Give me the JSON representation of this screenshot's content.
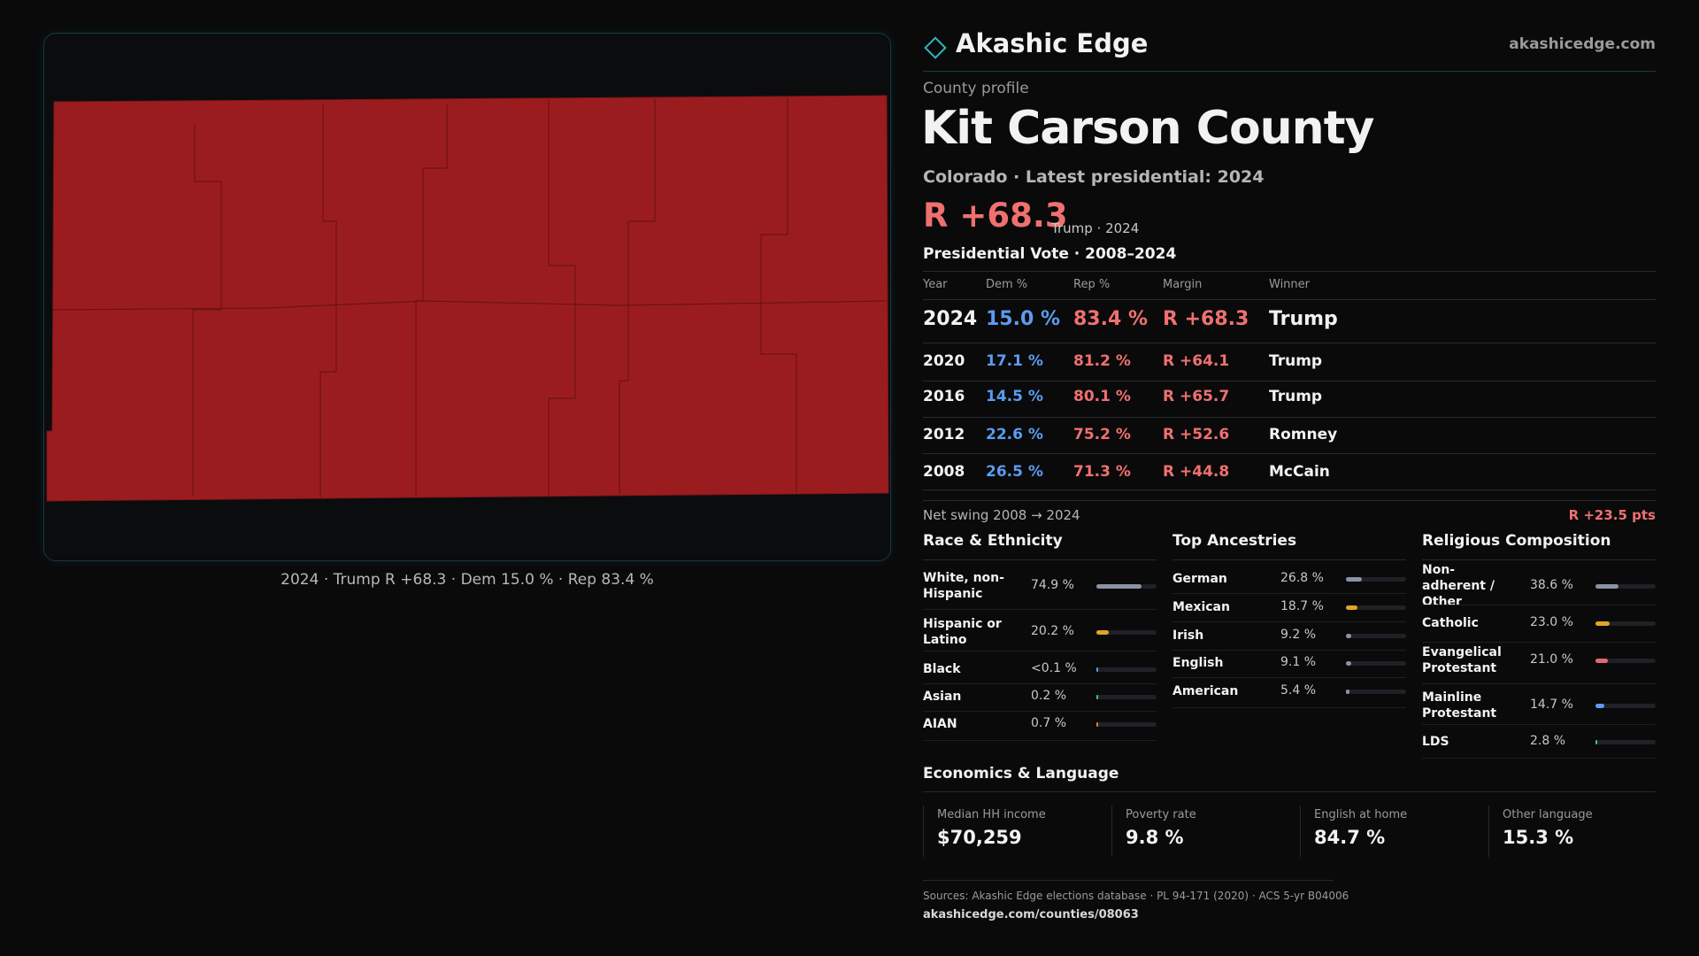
{
  "header": {
    "brand": "Akashic Edge",
    "site": "akashicedge.com"
  },
  "map": {
    "caption": "2024 · Trump R +68.3 · Dem 15.0 % · Rep 83.4 %"
  },
  "profile": {
    "eyebrow": "County profile",
    "title": "Kit Carson County",
    "subtitle": "Colorado · Latest presidential: 2024",
    "headline_margin": "R +68.3",
    "headline_note": "Trump · 2024"
  },
  "votes": {
    "title": "Presidential Vote · 2008–2024",
    "columns": [
      "Year",
      "Dem %",
      "Rep %",
      "Margin",
      "Winner"
    ],
    "rows": [
      [
        "2024",
        "15.0 %",
        "83.4 %",
        "R +68.3",
        "Trump"
      ],
      [
        "2020",
        "17.1 %",
        "81.2 %",
        "R +64.1",
        "Trump"
      ],
      [
        "2016",
        "14.5 %",
        "80.1 %",
        "R +65.7",
        "Trump"
      ],
      [
        "2012",
        "22.6 %",
        "75.2 %",
        "R +52.6",
        "Romney"
      ],
      [
        "2008",
        "26.5 %",
        "71.3 %",
        "R +44.8",
        "McCain"
      ]
    ],
    "swing_label": "Net swing 2008 → 2024",
    "swing_value": "R +23.5 pts"
  },
  "panels": [
    {
      "title": "Race & Ethnicity",
      "xlim": [
        0,
        100
      ],
      "rows": [
        {
          "label": "White, non-Hispanic",
          "value": 74.9,
          "value_label": "74.9 %",
          "color": "#8a93a3"
        },
        {
          "label": "Hispanic or Latino",
          "value": 20.2,
          "value_label": "20.2 %",
          "color": "#e0a526"
        },
        {
          "label": "Black",
          "value": 0.1,
          "value_label": "<0.1 %",
          "color": "#5b9cf0"
        },
        {
          "label": "Asian",
          "value": 0.2,
          "value_label": "0.2 %",
          "color": "#38c5b0"
        },
        {
          "label": "AIAN",
          "value": 0.7,
          "value_label": "0.7 %",
          "color": "#e07f3a"
        }
      ]
    },
    {
      "title": "Top Ancestries",
      "xlim": [
        0,
        100
      ],
      "rows": [
        {
          "label": "German",
          "value": 26.8,
          "value_label": "26.8 %",
          "color": "#8a93a3"
        },
        {
          "label": "Mexican",
          "value": 18.7,
          "value_label": "18.7 %",
          "color": "#e0a526"
        },
        {
          "label": "Irish",
          "value": 9.2,
          "value_label": "9.2 %",
          "color": "#8a93a3"
        },
        {
          "label": "English",
          "value": 9.1,
          "value_label": "9.1 %",
          "color": "#8a93a3"
        },
        {
          "label": "American",
          "value": 5.4,
          "value_label": "5.4 %",
          "color": "#8a93a3"
        }
      ]
    },
    {
      "title": "Religious Composition",
      "xlim": [
        0,
        100
      ],
      "rows": [
        {
          "label": "Non-adherent / Other",
          "value": 38.6,
          "value_label": "38.6 %",
          "color": "#8a93a3"
        },
        {
          "label": "Catholic",
          "value": 23.0,
          "value_label": "23.0 %",
          "color": "#e0a526"
        },
        {
          "label": "Evangelical Protestant",
          "value": 21.0,
          "value_label": "21.0 %",
          "color": "#e06a70"
        },
        {
          "label": "Mainline Protestant",
          "value": 14.7,
          "value_label": "14.7 %",
          "color": "#5b9cf0"
        },
        {
          "label": "LDS",
          "value": 2.8,
          "value_label": "2.8 %",
          "color": "#38c5b0"
        }
      ]
    }
  ],
  "economics": {
    "title": "Economics & Language",
    "cards": [
      {
        "label": "Median HH income",
        "value": "$70,259"
      },
      {
        "label": "Poverty rate",
        "value": "9.8 %"
      },
      {
        "label": "English at home",
        "value": "84.7 %"
      },
      {
        "label": "Other language",
        "value": "15.3 %"
      }
    ]
  },
  "footer": {
    "sources": "Sources: Akashic Edge elections database · PL 94-171 (2020) · ACS 5-yr B04006",
    "url": "akashicedge.com/counties/08063"
  }
}
